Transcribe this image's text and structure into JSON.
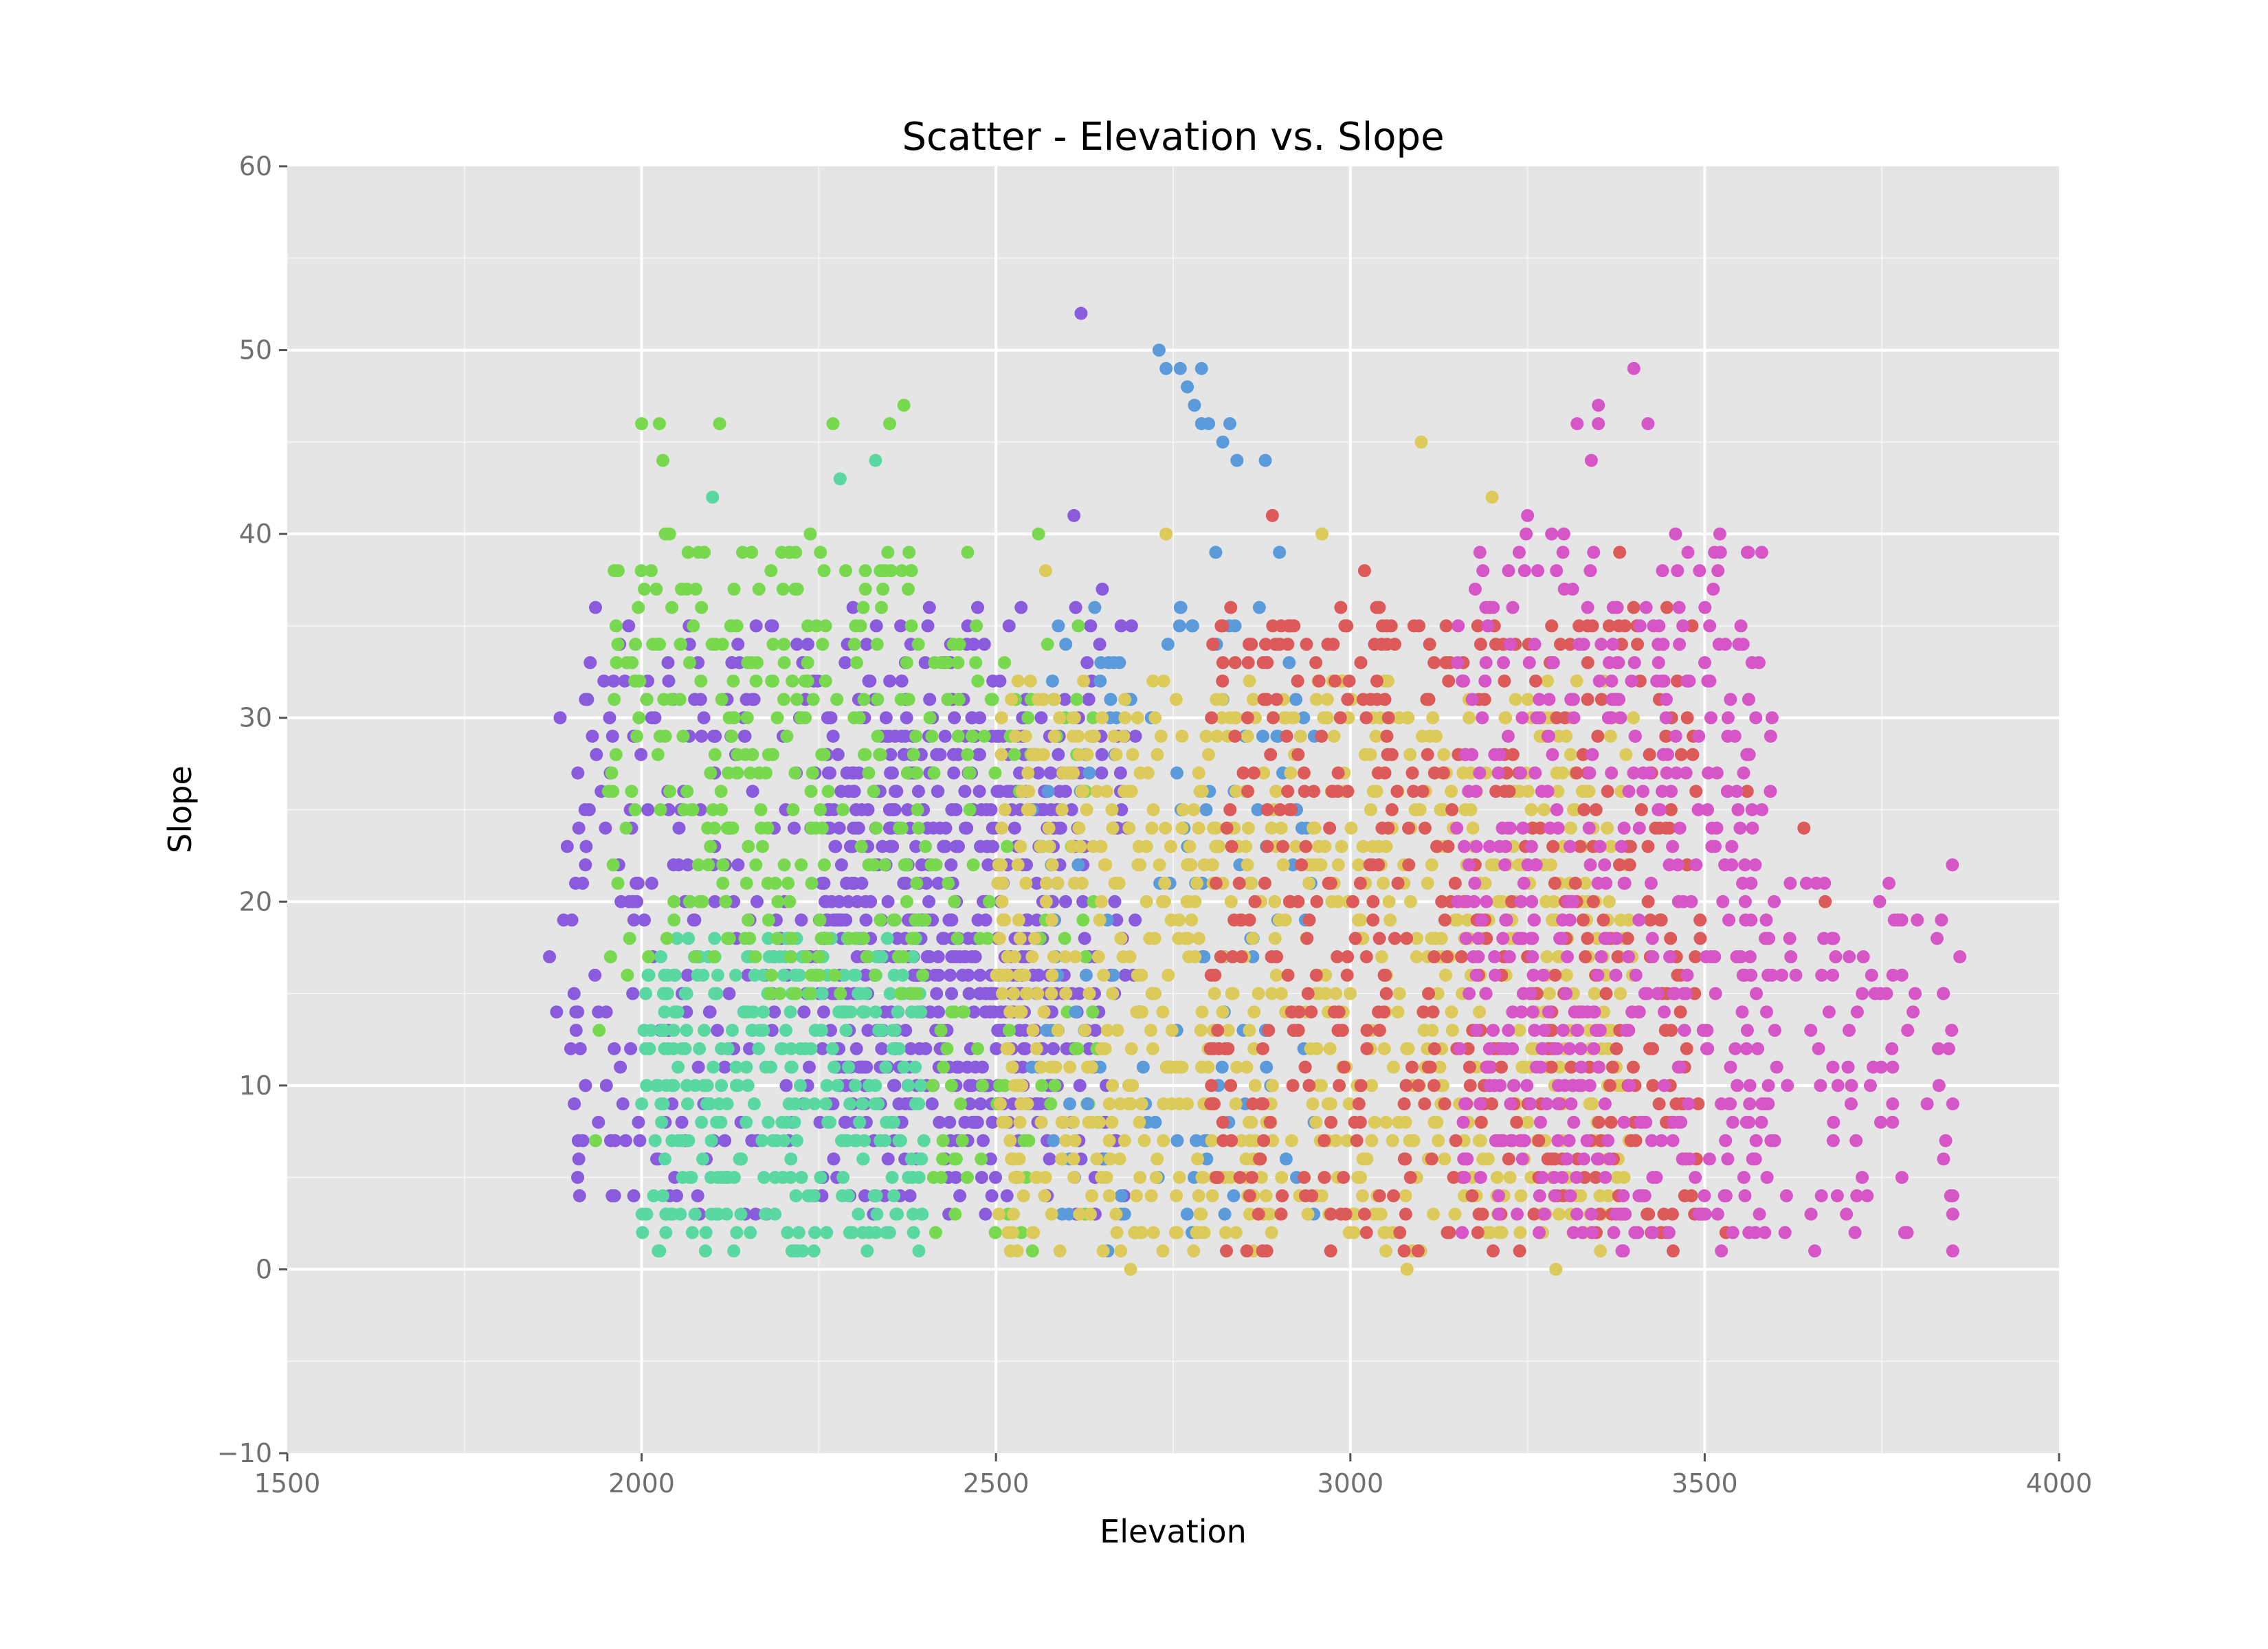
{
  "chart_data": {
    "type": "scatter",
    "title": "Scatter - Elevation vs. Slope",
    "xlabel": "Elevation",
    "ylabel": "Slope",
    "xlim": [
      1500,
      4000
    ],
    "ylim": [
      -10,
      60
    ],
    "x_ticks": [
      1500,
      2000,
      2500,
      3000,
      3500,
      4000
    ],
    "y_ticks": [
      -10,
      0,
      10,
      20,
      30,
      40,
      50,
      60
    ],
    "grid": true,
    "legend": "none",
    "background": "#e5e5e5",
    "gridline_color": "#ffffff",
    "series": [
      {
        "color": "#8a5bdc",
        "clusters": [
          {
            "x_range": [
              1900,
              2700
            ],
            "y_range": [
              3,
              36
            ],
            "count": 520
          },
          {
            "x_range": [
              2250,
              2600
            ],
            "y_range": [
              8,
              30
            ],
            "count": 380
          }
        ],
        "points": [
          {
            "x": 2620,
            "y": 52
          },
          {
            "x": 2610,
            "y": 41
          },
          {
            "x": 2650,
            "y": 37
          },
          {
            "x": 1870,
            "y": 17
          },
          {
            "x": 1880,
            "y": 14
          },
          {
            "x": 1890,
            "y": 19
          },
          {
            "x": 1900,
            "y": 12
          },
          {
            "x": 1905,
            "y": 9
          },
          {
            "x": 1885,
            "y": 30
          },
          {
            "x": 1895,
            "y": 23
          },
          {
            "x": 1910,
            "y": 27
          }
        ]
      },
      {
        "color": "#5ad8a2",
        "clusters": [
          {
            "x_range": [
              2000,
              2400
            ],
            "y_range": [
              1,
              18
            ],
            "count": 330
          }
        ],
        "points": [
          {
            "x": 2100,
            "y": 42
          },
          {
            "x": 2330,
            "y": 44
          },
          {
            "x": 2280,
            "y": 43
          },
          {
            "x": 2090,
            "y": 1
          },
          {
            "x": 2130,
            "y": 1
          },
          {
            "x": 2220,
            "y": 1
          }
        ]
      },
      {
        "color": "#78d94f",
        "clusters": [
          {
            "x_range": [
              1950,
              2400
            ],
            "y_range": [
              15,
              40
            ],
            "count": 280
          },
          {
            "x_range": [
              2400,
              2650
            ],
            "y_range": [
              1,
              35
            ],
            "count": 110
          }
        ],
        "points": [
          {
            "x": 2000,
            "y": 46
          },
          {
            "x": 2025,
            "y": 46
          },
          {
            "x": 2030,
            "y": 44
          },
          {
            "x": 2110,
            "y": 46
          },
          {
            "x": 2270,
            "y": 46
          },
          {
            "x": 2350,
            "y": 46
          },
          {
            "x": 2370,
            "y": 47
          },
          {
            "x": 1935,
            "y": 7
          },
          {
            "x": 1940,
            "y": 13
          },
          {
            "x": 2460,
            "y": 39
          },
          {
            "x": 2560,
            "y": 40
          }
        ]
      },
      {
        "color": "#5b9bdc",
        "clusters": [
          {
            "x_range": [
              2550,
              2950
            ],
            "y_range": [
              1,
              36
            ],
            "count": 140
          }
        ],
        "points": [
          {
            "x": 2730,
            "y": 50
          },
          {
            "x": 2740,
            "y": 49
          },
          {
            "x": 2760,
            "y": 49
          },
          {
            "x": 2790,
            "y": 49
          },
          {
            "x": 2770,
            "y": 48
          },
          {
            "x": 2780,
            "y": 47
          },
          {
            "x": 2790,
            "y": 46
          },
          {
            "x": 2800,
            "y": 46
          },
          {
            "x": 2830,
            "y": 46
          },
          {
            "x": 2820,
            "y": 45
          },
          {
            "x": 2840,
            "y": 44
          },
          {
            "x": 2880,
            "y": 44
          },
          {
            "x": 2810,
            "y": 39
          },
          {
            "x": 2900,
            "y": 39
          }
        ]
      },
      {
        "color": "#dccb5a",
        "clusters": [
          {
            "x_range": [
              2500,
              3400
            ],
            "y_range": [
              1,
              32
            ],
            "count": 900
          }
        ],
        "points": [
          {
            "x": 3100,
            "y": 45
          },
          {
            "x": 3200,
            "y": 42
          },
          {
            "x": 2740,
            "y": 40
          },
          {
            "x": 2960,
            "y": 40
          },
          {
            "x": 2690,
            "y": 0
          },
          {
            "x": 3080,
            "y": 0
          },
          {
            "x": 3290,
            "y": 0
          },
          {
            "x": 2570,
            "y": 38
          }
        ]
      },
      {
        "color": "#dc5a5a",
        "clusters": [
          {
            "x_range": [
              2800,
              3500
            ],
            "y_range": [
              1,
              36
            ],
            "count": 520
          }
        ],
        "points": [
          {
            "x": 2890,
            "y": 41
          },
          {
            "x": 3020,
            "y": 38
          },
          {
            "x": 3640,
            "y": 24
          },
          {
            "x": 3670,
            "y": 20
          },
          {
            "x": 3530,
            "y": 2
          },
          {
            "x": 3560,
            "y": 26
          },
          {
            "x": 3380,
            "y": 39
          }
        ]
      },
      {
        "color": "#d656c8",
        "clusters": [
          {
            "x_range": [
              3150,
              3600
            ],
            "y_range": [
              1,
              40
            ],
            "count": 480
          },
          {
            "x_range": [
              3550,
              3850
            ],
            "y_range": [
              1,
              22
            ],
            "count": 90
          }
        ],
        "points": [
          {
            "x": 3400,
            "y": 49
          },
          {
            "x": 3350,
            "y": 47
          },
          {
            "x": 3320,
            "y": 46
          },
          {
            "x": 3350,
            "y": 46
          },
          {
            "x": 3420,
            "y": 46
          },
          {
            "x": 3340,
            "y": 44
          },
          {
            "x": 3250,
            "y": 41
          },
          {
            "x": 3850,
            "y": 1
          },
          {
            "x": 3850,
            "y": 3
          },
          {
            "x": 3850,
            "y": 4
          },
          {
            "x": 3840,
            "y": 7
          },
          {
            "x": 3850,
            "y": 9
          },
          {
            "x": 3860,
            "y": 17
          },
          {
            "x": 3760,
            "y": 21
          },
          {
            "x": 3700,
            "y": 3
          },
          {
            "x": 3650,
            "y": 3
          },
          {
            "x": 3800,
            "y": 19
          }
        ]
      }
    ]
  }
}
